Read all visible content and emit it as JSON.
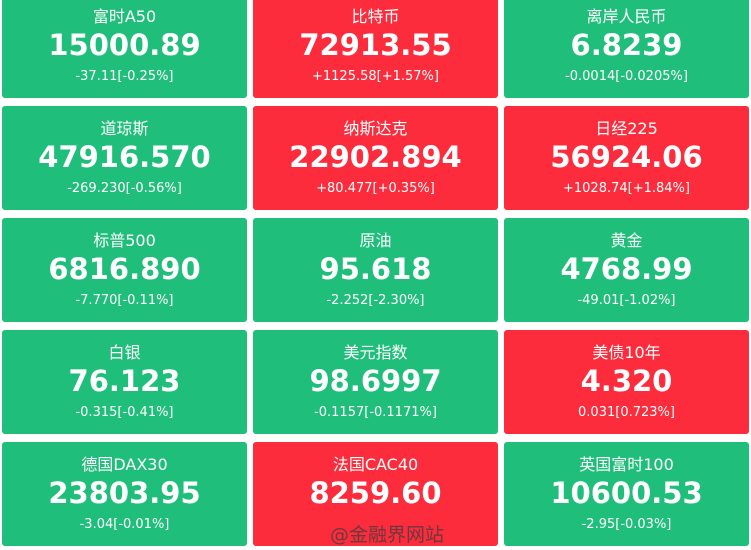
{
  "tiles": [
    {
      "name": "富时A50",
      "price": "15000.89",
      "change": "-37.11[-0.25%]",
      "color": "#1fbf7b"
    },
    {
      "name": "比特币",
      "price": "72913.55",
      "change": "+1125.58[+1.57%]",
      "color": "#fc2c3d"
    },
    {
      "name": "离岸人民币",
      "price": "6.8239",
      "change": "-0.0014[-0.0205%]",
      "color": "#1fbf7b"
    },
    {
      "name": "道琼斯",
      "price": "47916.570",
      "change": "-269.230[-0.56%]",
      "color": "#1fbf7b"
    },
    {
      "name": "纳斯达克",
      "price": "22902.894",
      "change": "+80.477[+0.35%]",
      "color": "#fc2c3d"
    },
    {
      "name": "日经225",
      "price": "56924.06",
      "change": "+1028.74[+1.84%]",
      "color": "#fc2c3d"
    },
    {
      "name": "标普500",
      "price": "6816.890",
      "change": "-7.770[-0.11%]",
      "color": "#1fbf7b"
    },
    {
      "name": "原油",
      "price": "95.618",
      "change": "-2.252[-2.30%]",
      "color": "#1fbf7b"
    },
    {
      "name": "黄金",
      "price": "4768.99",
      "change": "-49.01[-1.02%]",
      "color": "#1fbf7b"
    },
    {
      "name": "白银",
      "price": "76.123",
      "change": "-0.315[-0.41%]",
      "color": "#1fbf7b"
    },
    {
      "name": "美元指数",
      "price": "98.6997",
      "change": "-0.1157[-0.1171%]",
      "color": "#1fbf7b"
    },
    {
      "name": "美债10年",
      "price": "4.320",
      "change": "0.031[0.723%]",
      "color": "#fc2c3d"
    },
    {
      "name": "德国DAX30",
      "price": "23803.95",
      "change": "-3.04[-0.01%]",
      "color": "#1fbf7b"
    },
    {
      "name": "法国CAC40",
      "price": "8259.60",
      "change": "",
      "color": "#fc2c3d"
    },
    {
      "name": "英国富时100",
      "price": "10600.53",
      "change": "-2.95[-0.03%]",
      "color": "#1fbf7b"
    }
  ],
  "watermark": "@金融界网站"
}
